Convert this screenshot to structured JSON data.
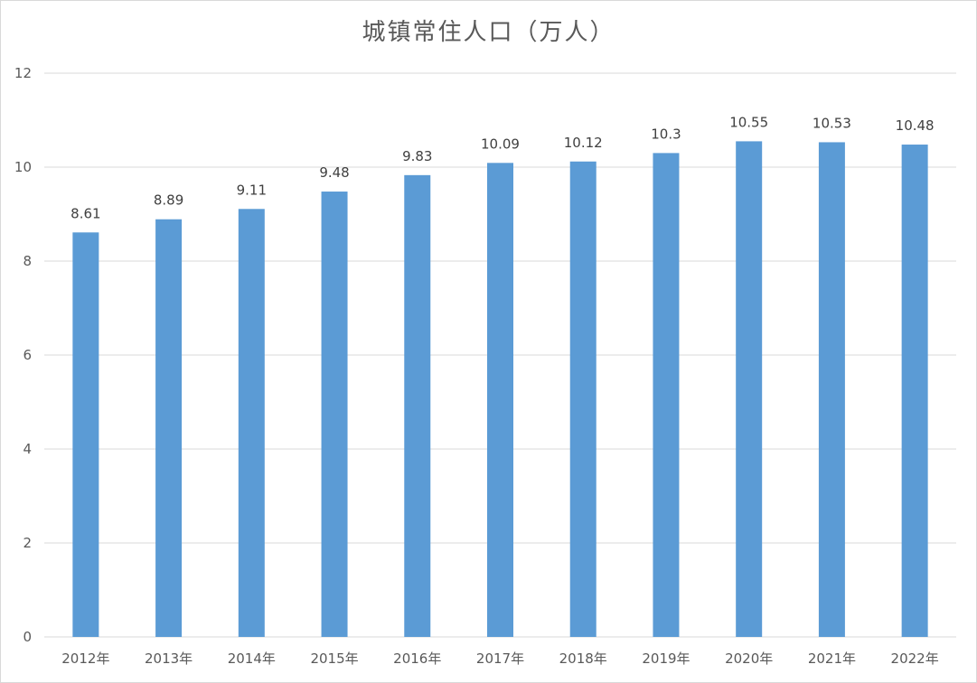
{
  "chart_data": {
    "type": "bar",
    "title": "城镇常住人口（万人）",
    "categories": [
      "2012年",
      "2013年",
      "2014年",
      "2015年",
      "2016年",
      "2017年",
      "2018年",
      "2019年",
      "2020年",
      "2021年",
      "2022年"
    ],
    "values": [
      8.61,
      8.89,
      9.11,
      9.48,
      9.83,
      10.09,
      10.12,
      10.3,
      10.55,
      10.53,
      10.48
    ],
    "value_labels": [
      "8.61",
      "8.89",
      "9.11",
      "9.48",
      "9.83",
      "10.09",
      "10.12",
      "10.3",
      "10.55",
      "10.53",
      "10.48"
    ],
    "yticks": [
      "0",
      "2",
      "4",
      "6",
      "8",
      "10",
      "12"
    ],
    "ylim": [
      0,
      12
    ],
    "xlabel": "",
    "ylabel": "",
    "grid": true,
    "legend": "none",
    "bar_color": "#5B9BD5",
    "grid_color": "#d9d9d9",
    "text_color": "#595959"
  }
}
